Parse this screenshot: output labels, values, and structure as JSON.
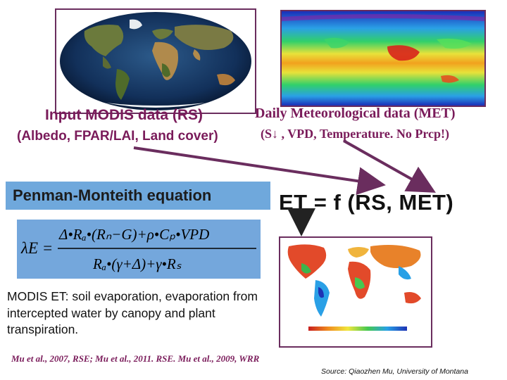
{
  "rs": {
    "title": "Input MODIS data (RS)",
    "subtitle": "(Albedo, FPAR/LAI, Land cover)"
  },
  "met": {
    "title": "Daily Meteorological data (MET)",
    "subtitle": "(S↓ , VPD, Temperature. No Prcp!)"
  },
  "pm": {
    "title": "Penman-Monteith equation"
  },
  "et_equation": "ET = f (RS, MET)",
  "formula": {
    "lhs": "λE =",
    "numerator": "Δ•Rₐ•(Rₙ−G)+ρ•Cₚ•VPD",
    "denominator": "Rₐ•(γ+Δ)+γ•Rₛ"
  },
  "description": "MODIS ET: soil evaporation, evaporation from intercepted water by canopy and plant transpiration.",
  "references": "Mu et al., 2007, RSE; Mu et al., 2011. RSE.  Mu et al., 2009, WRR",
  "source": "Source: Qiaozhen Mu, University of Montana",
  "colors": {
    "accent": "#7a1b5a",
    "banner": "#6fa8dc",
    "formula_bg": "#74a7dc",
    "arrow": "#6a2d5e"
  },
  "icons": {
    "globe": "earth-globe-image",
    "met_map": "global-meteorology-map",
    "et_map": "global-et-map"
  }
}
